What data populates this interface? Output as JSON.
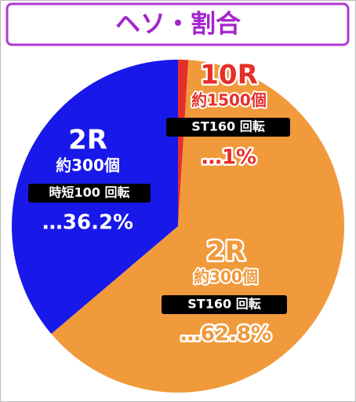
{
  "chart_data": {
    "type": "pie",
    "title": "ヘソ・割合",
    "categories": [
      "10R",
      "2R",
      "2R"
    ],
    "values": [
      1,
      62.8,
      36.2
    ],
    "value_labels": [
      "…1%",
      "…62.8%",
      "…36.2%"
    ],
    "counts": [
      "約1500個",
      "約300個",
      "約300個"
    ],
    "spins": [
      "ST160 回転",
      "ST160 回転",
      "時短100 回転"
    ],
    "colors": [
      "#e5302a",
      "#f09a3c",
      "#1818e8"
    ]
  }
}
